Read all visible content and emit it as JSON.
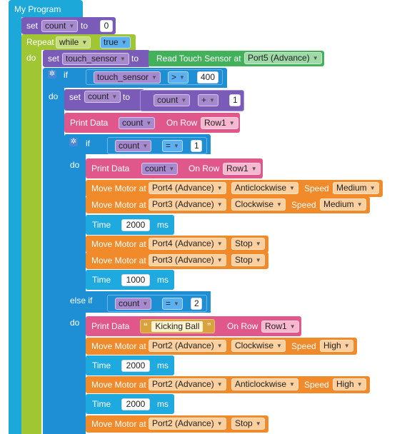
{
  "program": {
    "title": "My Program"
  },
  "set_count": {
    "set_kw": "set",
    "variable": "count",
    "to_kw": "to",
    "value": "0"
  },
  "repeat": {
    "repeat_kw": "Repeat",
    "mode": "while",
    "condition": "true",
    "do_kw": "do"
  },
  "set_touch": {
    "set_kw": "set",
    "variable": "touch_sensor",
    "to_kw": "to",
    "sensor_label": "Read Touch Sensor at",
    "port": "Port5 (Advance)"
  },
  "if1": {
    "if_kw": "if",
    "variable": "touch_sensor",
    "operator": ">",
    "value": "400",
    "do_kw": "do"
  },
  "set_inc": {
    "set_kw": "set",
    "variable": "count",
    "to_kw": "to",
    "operand": "count",
    "operator": "+",
    "value": "1"
  },
  "print1": {
    "label": "Print Data",
    "value": "count",
    "row_label": "On Row",
    "row": "Row1"
  },
  "if2": {
    "if_kw": "if",
    "variable": "count",
    "operator": "=",
    "value": "1",
    "do_kw": "do",
    "else_if_kw": "else if",
    "variable2": "count",
    "operator2": "=",
    "value2": "2",
    "do2_kw": "do"
  },
  "print2": {
    "label": "Print Data",
    "value": "count",
    "row_label": "On Row",
    "row": "Row1"
  },
  "motor1": {
    "label": "Move Motor at",
    "port": "Port4 (Advance)",
    "direction": "Anticlockwise",
    "speed_label": "Speed",
    "speed": "Medium"
  },
  "motor2": {
    "label": "Move Motor at",
    "port": "Port3 (Advance)",
    "direction": "Clockwise",
    "speed_label": "Speed",
    "speed": "Medium"
  },
  "time1": {
    "label": "Time",
    "value": "2000",
    "unit": "ms"
  },
  "motor3": {
    "label": "Move Motor at",
    "port": "Port4 (Advance)",
    "action": "Stop"
  },
  "motor4": {
    "label": "Move Motor at",
    "port": "Port3 (Advance)",
    "action": "Stop"
  },
  "time2": {
    "label": "Time",
    "value": "1000",
    "unit": "ms"
  },
  "print3": {
    "label": "Print Data",
    "text": "Kicking Ball",
    "row_label": "On Row",
    "row": "Row1"
  },
  "motor5": {
    "label": "Move Motor at",
    "port": "Port2 (Advance)",
    "direction": "Clockwise",
    "speed_label": "Speed",
    "speed": "High"
  },
  "time3": {
    "label": "Time",
    "value": "2000",
    "unit": "ms"
  },
  "motor6": {
    "label": "Move Motor at",
    "port": "Port2 (Advance)",
    "direction": "Anticlockwise",
    "speed_label": "Speed",
    "speed": "High"
  },
  "time4": {
    "label": "Time",
    "value": "2000",
    "unit": "ms"
  },
  "motor7": {
    "label": "Move Motor at",
    "port": "Port2 (Advance)",
    "action": "Stop"
  },
  "colors": {
    "program": "#1ca8d8",
    "variables": "#7a5cb8",
    "loops": "#a0c634",
    "logic": "#1e8fd4",
    "display": "#e0578c",
    "sensor": "#43b05c",
    "motor": "#f08a2a",
    "time": "#1ea9df"
  }
}
